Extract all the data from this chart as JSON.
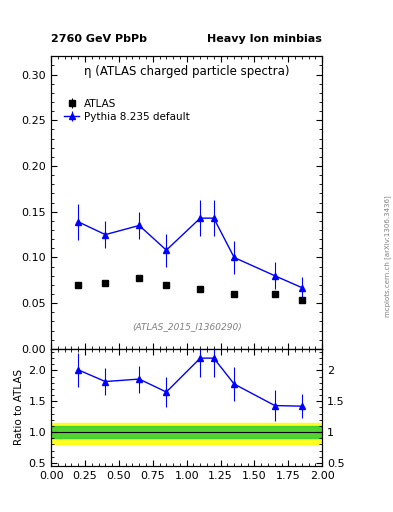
{
  "title_left": "2760 GeV PbPb",
  "title_right": "Heavy Ion minbias",
  "main_title": "η (ATLAS charged particle spectra)",
  "ref_label": "(ATLAS_2015_I1360290)",
  "watermark": "mcplots.cern.ch [arXiv:1306.3436]",
  "atlas_x": [
    0.2,
    0.4,
    0.65,
    0.85,
    1.1,
    1.35,
    1.65,
    1.85
  ],
  "atlas_y": [
    0.07,
    0.072,
    0.077,
    0.07,
    0.065,
    0.06,
    0.06,
    0.053
  ],
  "atlas_yerr": [
    0.002,
    0.002,
    0.002,
    0.002,
    0.002,
    0.002,
    0.002,
    0.002
  ],
  "pythia_x": [
    0.2,
    0.4,
    0.65,
    0.85,
    1.1,
    1.2,
    1.35,
    1.65,
    1.85
  ],
  "pythia_y": [
    0.139,
    0.125,
    0.135,
    0.108,
    0.143,
    0.143,
    0.1,
    0.08,
    0.067
  ],
  "pythia_yerr_lo": [
    0.02,
    0.015,
    0.015,
    0.018,
    0.02,
    0.02,
    0.018,
    0.015,
    0.012
  ],
  "pythia_yerr_hi": [
    0.02,
    0.015,
    0.015,
    0.018,
    0.02,
    0.02,
    0.018,
    0.015,
    0.012
  ],
  "ratio_x": [
    0.2,
    0.4,
    0.65,
    0.85,
    1.1,
    1.2,
    1.35,
    1.65,
    1.85
  ],
  "ratio_y": [
    2.01,
    1.82,
    1.86,
    1.65,
    2.2,
    2.2,
    1.78,
    1.43,
    1.42
  ],
  "ratio_yerr_lo": [
    0.28,
    0.22,
    0.22,
    0.25,
    0.3,
    0.3,
    0.28,
    0.25,
    0.2
  ],
  "ratio_yerr_hi": [
    0.28,
    0.22,
    0.22,
    0.25,
    0.3,
    0.3,
    0.28,
    0.25,
    0.2
  ],
  "green_band": [
    0.9,
    1.1
  ],
  "yellow_band": [
    0.8,
    1.15
  ],
  "main_ylim": [
    0.0,
    0.32
  ],
  "ratio_ylim": [
    0.45,
    2.35
  ],
  "xlim": [
    0.0,
    2.0
  ],
  "main_yticks": [
    0.0,
    0.05,
    0.1,
    0.15,
    0.2,
    0.25,
    0.3
  ],
  "ratio_yticks": [
    0.5,
    1.0,
    1.5,
    2.0
  ],
  "atlas_color": "black",
  "pythia_color": "blue"
}
